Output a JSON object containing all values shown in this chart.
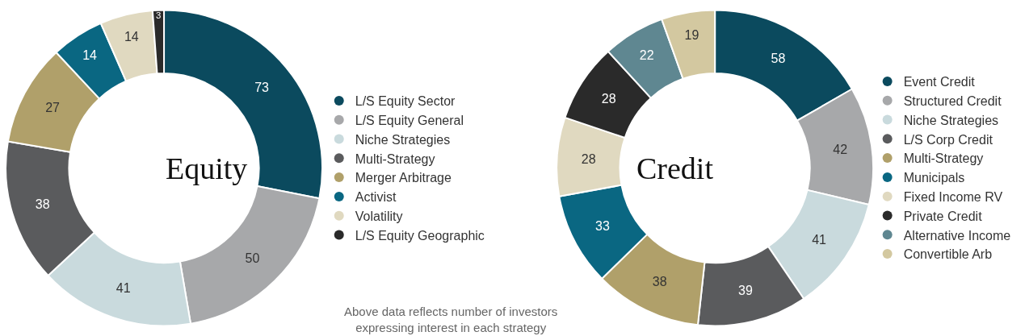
{
  "chart_data": [
    {
      "type": "donut",
      "title": "Equity",
      "categories": [
        "L/S Equity Sector",
        "L/S Equity General",
        "Niche Strategies",
        "Multi-Strategy",
        "Merger Arbitrage",
        "Activist",
        "Volatility",
        "L/S Equity Geographic"
      ],
      "values": [
        73,
        50,
        41,
        38,
        27,
        14,
        14,
        3
      ],
      "colors": [
        "#0b4a5e",
        "#a7a8aa",
        "#c9dadd",
        "#5a5b5d",
        "#b0a06a",
        "#0a6782",
        "#e0d9c0",
        "#2a2a2a"
      ],
      "data_labels": true,
      "legend": "right",
      "annotations": [
        "Above data reflects number of investors expressing interest in each strategy"
      ]
    },
    {
      "type": "donut",
      "title": "Credit",
      "categories": [
        "Event Credit",
        "Structured Credit",
        "Niche Strategies",
        "L/S Corp Credit",
        "Multi-Strategy",
        "Municipals",
        "Fixed Income RV",
        "Private Credit",
        "Alternative Income",
        "Convertible Arb"
      ],
      "values": [
        58,
        42,
        41,
        39,
        38,
        33,
        28,
        28,
        22,
        19
      ],
      "colors": [
        "#0b4a5e",
        "#a7a8aa",
        "#c9dadd",
        "#5a5b5d",
        "#b0a06a",
        "#0a6782",
        "#e0d9c0",
        "#2a2a2a",
        "#5f8791",
        "#d3c8a0"
      ],
      "data_labels": true,
      "legend": "right"
    }
  ]
}
